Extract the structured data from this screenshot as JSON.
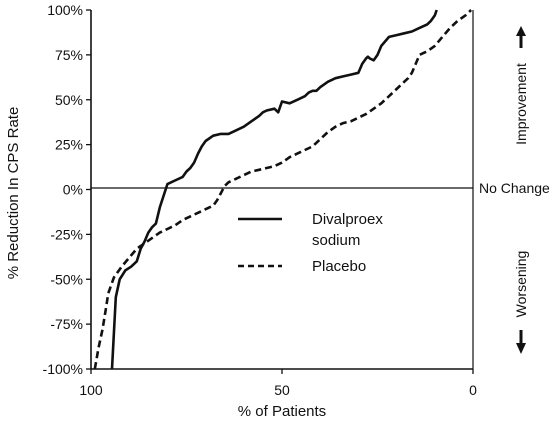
{
  "chart_data": {
    "type": "line",
    "title": "",
    "xlabel": "% of Patients",
    "ylabel": "% Reduction In CPS Rate",
    "xlim": [
      100,
      0
    ],
    "ylim": [
      -100,
      100
    ],
    "x_reversed": true,
    "x_ticks": [
      {
        "value": 100,
        "label": "100"
      },
      {
        "value": 50,
        "label": "50"
      },
      {
        "value": 0,
        "label": "0"
      }
    ],
    "y_ticks": [
      {
        "value": 100,
        "label": "100%"
      },
      {
        "value": 75,
        "label": "75%"
      },
      {
        "value": 50,
        "label": "50%"
      },
      {
        "value": 25,
        "label": "25%"
      },
      {
        "value": 0,
        "label": "0%"
      },
      {
        "value": -25,
        "label": "-25%"
      },
      {
        "value": -50,
        "label": "-50%"
      },
      {
        "value": -75,
        "label": "-75%"
      },
      {
        "value": -100,
        "label": "-100%"
      }
    ],
    "zero_line_label": "No Change",
    "side_labels": {
      "top": "Improvement",
      "bottom": "Worsening"
    },
    "grid": false,
    "legend_position": "center-right",
    "series": [
      {
        "name": "Divalproex sodium",
        "style": "solid",
        "x": [
          94.5,
          94,
          93.5,
          92.5,
          91,
          89.5,
          88,
          87,
          86,
          85,
          84,
          83,
          82,
          80,
          78,
          76,
          75,
          74,
          73,
          72,
          71,
          70,
          68,
          66,
          64,
          62,
          60,
          58,
          56,
          55,
          54,
          52,
          51,
          50,
          48,
          46,
          44,
          43,
          42,
          41,
          40,
          38,
          36,
          34,
          32,
          30,
          29,
          28,
          27.5,
          27,
          26,
          25,
          24,
          22,
          20,
          18,
          16,
          14,
          12,
          11,
          10,
          9.5
        ],
        "y": [
          -100,
          -80,
          -60,
          -50,
          -45,
          -43,
          -40,
          -33,
          -29,
          -24,
          -21,
          -19,
          -10,
          3,
          5,
          7,
          10,
          12,
          15,
          20,
          24,
          27,
          30,
          31,
          31,
          33,
          35,
          38,
          41,
          43,
          44,
          45,
          43,
          49,
          48,
          50,
          52,
          54,
          55,
          55,
          57,
          60,
          62,
          63,
          64,
          65,
          70,
          73,
          74,
          73,
          72,
          75,
          80,
          85,
          86,
          87,
          88,
          90,
          92,
          94,
          97,
          100
        ]
      },
      {
        "name": "Placebo",
        "style": "dashed",
        "x": [
          99,
          98,
          97,
          96,
          95.5,
          95,
          94,
          92,
          90,
          88,
          86,
          84,
          82,
          80,
          78,
          76,
          74,
          72,
          70,
          68,
          67,
          66,
          65,
          64,
          62,
          60,
          58,
          56,
          54,
          52,
          50,
          48,
          46,
          44,
          42,
          40,
          38,
          36,
          34,
          32,
          30,
          28,
          26,
          24,
          22,
          20,
          19,
          18,
          17,
          16,
          15,
          14,
          13,
          12,
          10,
          8,
          6,
          4,
          2,
          0.5
        ],
        "y": [
          -100,
          -88,
          -78,
          -65,
          -58,
          -55,
          -49,
          -43,
          -38,
          -33,
          -30,
          -27,
          -24,
          -22,
          -20,
          -17,
          -15,
          -13,
          -11,
          -9,
          -6,
          -2,
          2,
          4,
          6,
          8,
          10,
          11,
          12,
          13,
          15,
          18,
          20,
          22,
          24,
          28,
          32,
          35,
          37,
          38,
          40,
          42,
          45,
          48,
          52,
          56,
          58,
          60,
          62,
          65,
          70,
          75,
          76,
          77,
          80,
          85,
          90,
          94,
          97,
          100
        ]
      }
    ]
  }
}
